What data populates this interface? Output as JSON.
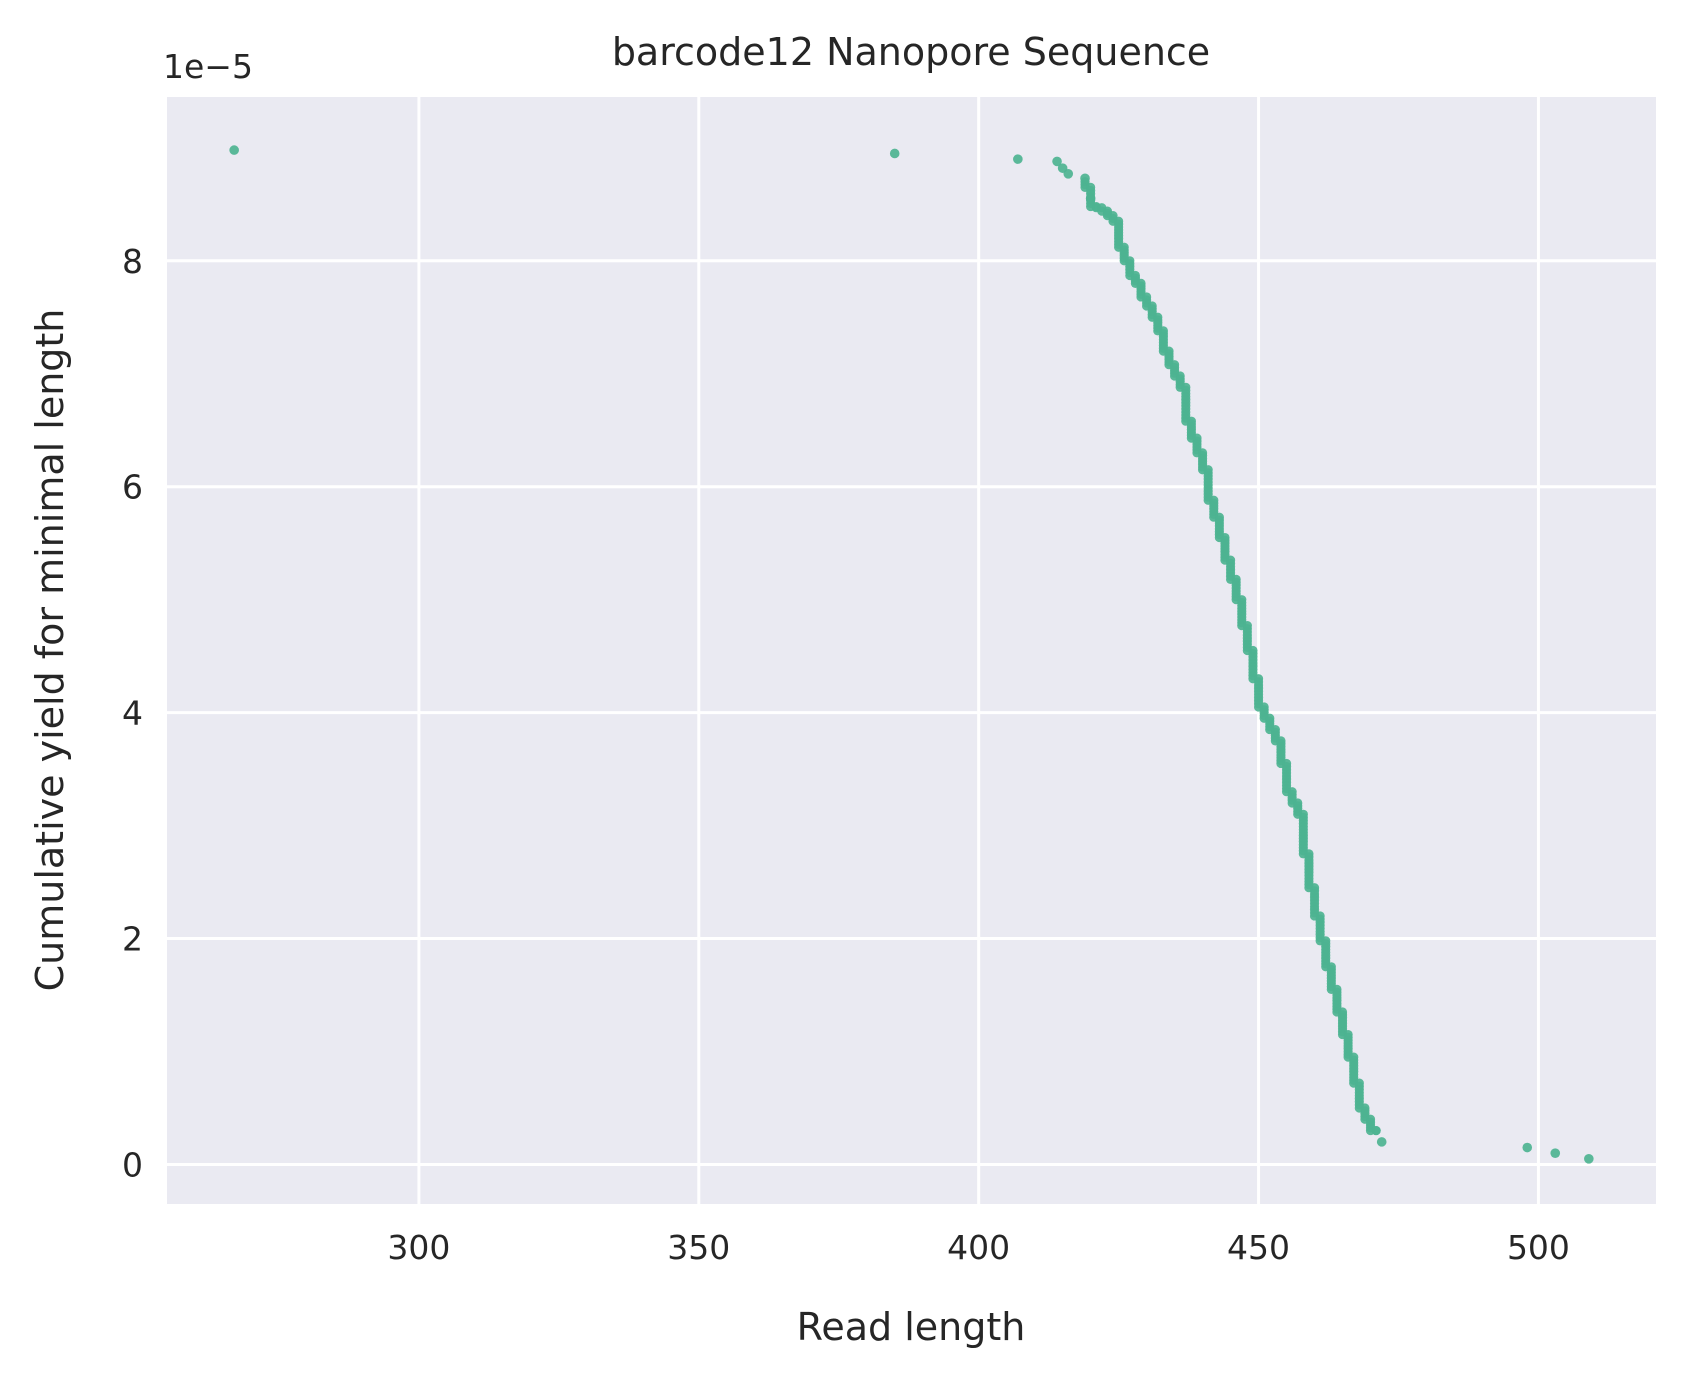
{
  "chart_data": {
    "type": "scatter",
    "title": "barcode12 Nanopore Sequence",
    "xlabel": "Read length",
    "ylabel": "Cumulative yield for minimal length",
    "y_offset_label": "1e−5",
    "xlim": [
      255,
      521
    ],
    "ylim": [
      -0.35,
      9.45
    ],
    "x_ticks": [
      300,
      350,
      400,
      450,
      500
    ],
    "y_ticks": [
      0,
      2,
      4,
      6,
      8
    ],
    "grid": true,
    "point_color": "#4db391",
    "background_color": "#eaeaf2",
    "steps": [
      [
        419,
        8.7
      ],
      [
        420,
        8.65
      ],
      [
        421,
        8.48
      ],
      [
        422,
        8.47
      ],
      [
        423,
        8.44
      ],
      [
        424,
        8.4
      ],
      [
        425,
        8.35
      ],
      [
        426,
        8.12
      ],
      [
        427,
        8.0
      ],
      [
        428,
        7.87
      ],
      [
        429,
        7.8
      ],
      [
        430,
        7.68
      ],
      [
        431,
        7.6
      ],
      [
        432,
        7.5
      ],
      [
        433,
        7.38
      ],
      [
        434,
        7.2
      ],
      [
        435,
        7.08
      ],
      [
        436,
        6.98
      ],
      [
        437,
        6.88
      ],
      [
        438,
        6.58
      ],
      [
        439,
        6.43
      ],
      [
        440,
        6.3
      ],
      [
        441,
        6.15
      ],
      [
        442,
        5.88
      ],
      [
        443,
        5.73
      ],
      [
        444,
        5.55
      ],
      [
        445,
        5.35
      ],
      [
        446,
        5.18
      ],
      [
        447,
        5.0
      ],
      [
        448,
        4.77
      ],
      [
        449,
        4.55
      ],
      [
        450,
        4.3
      ],
      [
        451,
        4.05
      ],
      [
        452,
        3.95
      ],
      [
        453,
        3.85
      ],
      [
        454,
        3.75
      ],
      [
        455,
        3.55
      ],
      [
        456,
        3.3
      ],
      [
        457,
        3.2
      ],
      [
        458,
        3.1
      ],
      [
        459,
        2.75
      ],
      [
        460,
        2.45
      ],
      [
        461,
        2.2
      ],
      [
        462,
        1.98
      ],
      [
        463,
        1.75
      ],
      [
        464,
        1.55
      ],
      [
        465,
        1.35
      ],
      [
        466,
        1.15
      ],
      [
        467,
        0.95
      ],
      [
        468,
        0.72
      ],
      [
        469,
        0.5
      ],
      [
        470,
        0.4
      ],
      [
        471,
        0.3
      ]
    ],
    "points": [
      [
        267,
        8.98
      ],
      [
        385,
        8.95
      ],
      [
        407,
        8.9
      ],
      [
        414,
        8.88
      ],
      [
        415,
        8.82
      ],
      [
        416,
        8.77
      ],
      [
        419,
        8.73
      ],
      [
        420,
        8.55
      ],
      [
        472,
        0.2
      ],
      [
        498,
        0.15
      ],
      [
        503,
        0.1
      ],
      [
        509,
        0.05
      ]
    ]
  }
}
